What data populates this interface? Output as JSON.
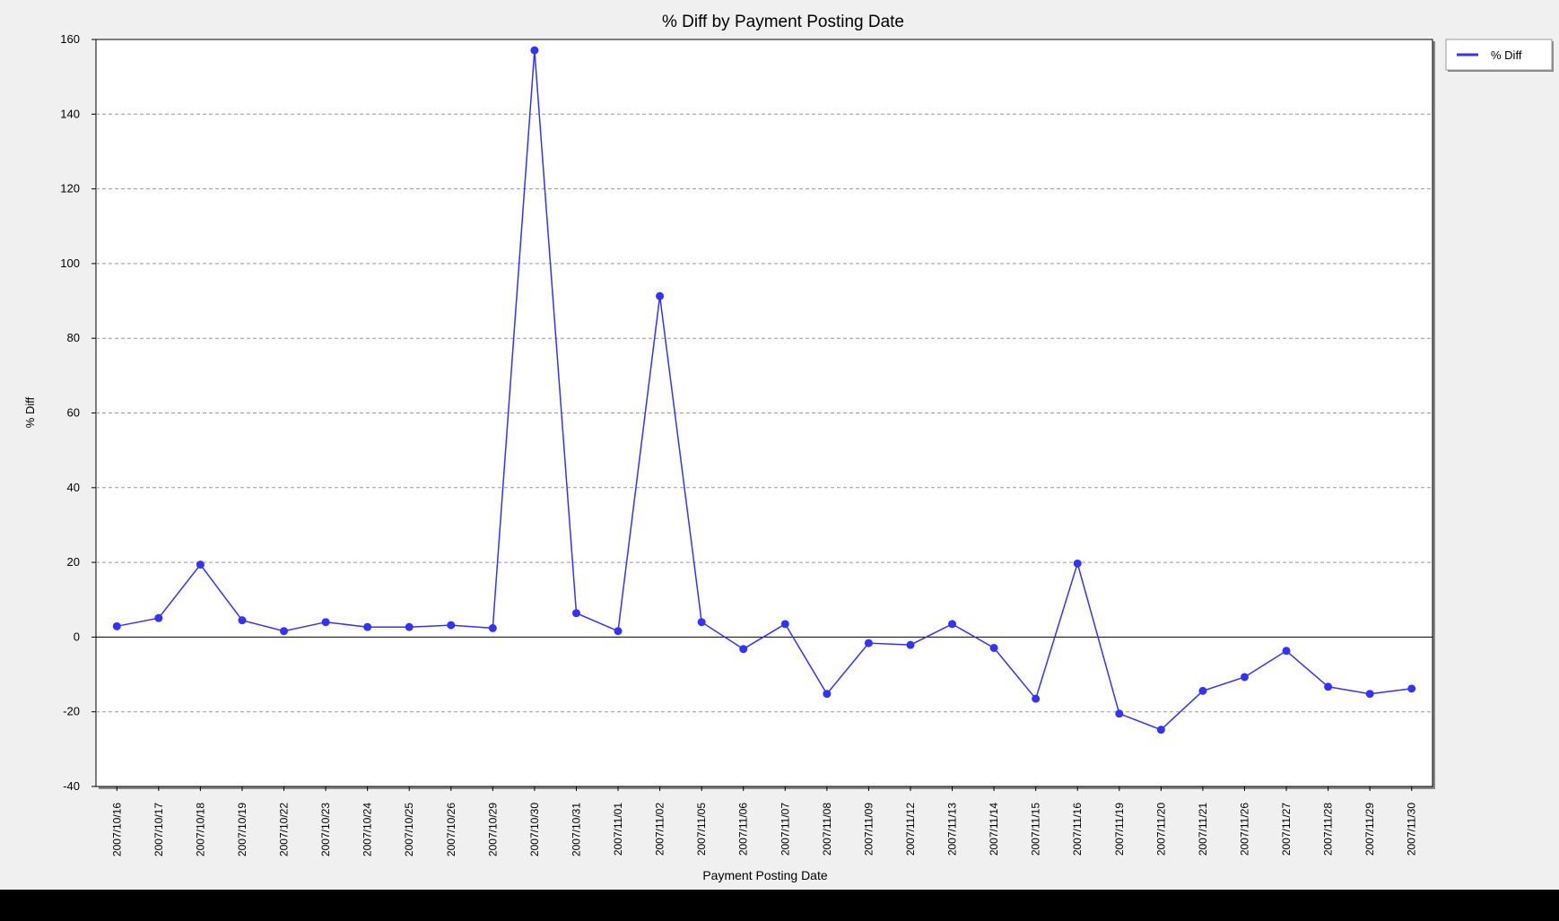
{
  "chart_data": {
    "type": "line",
    "title": "% Diff by Payment Posting Date",
    "x_label": "Payment Posting Date",
    "y_label": "% Diff",
    "categories": [
      "2007/10/16",
      "2007/10/17",
      "2007/10/18",
      "2007/10/19",
      "2007/10/22",
      "2007/10/23",
      "2007/10/24",
      "2007/10/25",
      "2007/10/26",
      "2007/10/29",
      "2007/10/30",
      "2007/10/31",
      "2007/11/01",
      "2007/11/02",
      "2007/11/05",
      "2007/11/06",
      "2007/11/07",
      "2007/11/08",
      "2007/11/09",
      "2007/11/12",
      "2007/11/13",
      "2007/11/14",
      "2007/11/15",
      "2007/11/16",
      "2007/11/19",
      "2007/11/20",
      "2007/11/21",
      "2007/11/26",
      "2007/11/27",
      "2007/11/28",
      "2007/11/29",
      "2007/11/30"
    ],
    "series": [
      {
        "name": "% Diff",
        "color": "#3333ff",
        "values": [
          2.9,
          5.1,
          19.4,
          4.5,
          1.6,
          4.0,
          2.7,
          2.7,
          3.2,
          2.4,
          157.1,
          6.4,
          1.6,
          91.3,
          4.0,
          -3.2,
          3.5,
          -15.2,
          -1.6,
          -2.1,
          3.5,
          -2.9,
          -16.5,
          19.7,
          -20.5,
          -24.8,
          -14.4,
          -10.7,
          -3.7,
          -13.3,
          -15.2,
          -13.8
        ]
      }
    ],
    "ylim": [
      -40,
      160
    ],
    "yticks": [
      -40,
      -20,
      0,
      20,
      40,
      60,
      80,
      100,
      120,
      140,
      160
    ],
    "grid": true,
    "legend": "right"
  }
}
